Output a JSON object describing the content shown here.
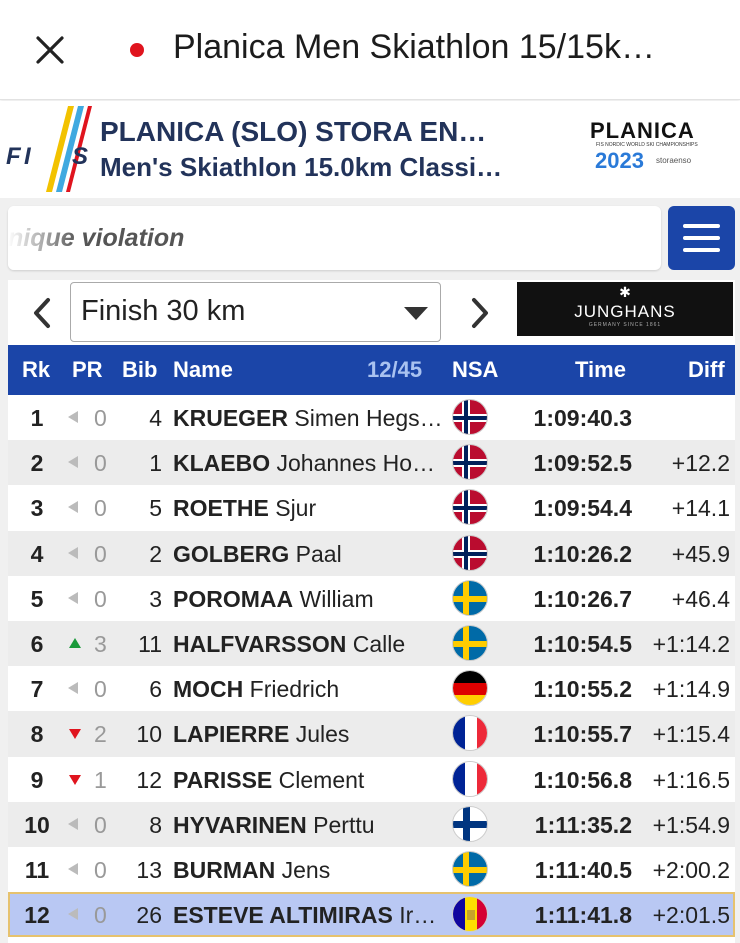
{
  "window": {
    "tab_title": "Planica Men Skiathlon 15/15k…"
  },
  "event": {
    "title_line1": "PLANICA (SLO) STORA EN…",
    "title_line2": "Men's Skiathlon 15.0km Classi…",
    "fis_logo_text": "FIS",
    "sponsor_logo": {
      "word": "PLANICA",
      "sub": "FIS NORDIC WORLD SKI CHAMPIONSHIPS",
      "year": "2023",
      "partner": "storaenso"
    }
  },
  "search": {
    "value": "nique violation"
  },
  "checkpoint": {
    "selected": "Finish 30 km",
    "ad": {
      "brand": "JUNGHANS",
      "sub": "GERMANY SINCE 1861"
    }
  },
  "table": {
    "headers": {
      "rk": "Rk",
      "pr": "PR",
      "bib": "Bib",
      "name": "Name",
      "count": "12/45",
      "nsa": "NSA",
      "time": "Time",
      "diff": "Diff"
    },
    "rows": [
      {
        "rk": "1",
        "pr_dir": "same",
        "pr": "0",
        "bib": "4",
        "last": "KRUEGER",
        "first": "Simen Hegs…",
        "nsa": "NOR",
        "time": "1:09:40.3",
        "diff": ""
      },
      {
        "rk": "2",
        "pr_dir": "same",
        "pr": "0",
        "bib": "1",
        "last": "KLAEBO",
        "first": "Johannes Ho…",
        "nsa": "NOR",
        "time": "1:09:52.5",
        "diff": "+12.2"
      },
      {
        "rk": "3",
        "pr_dir": "same",
        "pr": "0",
        "bib": "5",
        "last": "ROETHE",
        "first": "Sjur",
        "nsa": "NOR",
        "time": "1:09:54.4",
        "diff": "+14.1"
      },
      {
        "rk": "4",
        "pr_dir": "same",
        "pr": "0",
        "bib": "2",
        "last": "GOLBERG",
        "first": "Paal",
        "nsa": "NOR",
        "time": "1:10:26.2",
        "diff": "+45.9"
      },
      {
        "rk": "5",
        "pr_dir": "same",
        "pr": "0",
        "bib": "3",
        "last": "POROMAA",
        "first": "William",
        "nsa": "SWE",
        "time": "1:10:26.7",
        "diff": "+46.4"
      },
      {
        "rk": "6",
        "pr_dir": "up",
        "pr": "3",
        "bib": "11",
        "last": "HALFVARSSON",
        "first": "Calle",
        "nsa": "SWE",
        "time": "1:10:54.5",
        "diff": "+1:14.2"
      },
      {
        "rk": "7",
        "pr_dir": "same",
        "pr": "0",
        "bib": "6",
        "last": "MOCH",
        "first": "Friedrich",
        "nsa": "GER",
        "time": "1:10:55.2",
        "diff": "+1:14.9"
      },
      {
        "rk": "8",
        "pr_dir": "down",
        "pr": "2",
        "bib": "10",
        "last": "LAPIERRE",
        "first": "Jules",
        "nsa": "FRA",
        "time": "1:10:55.7",
        "diff": "+1:15.4"
      },
      {
        "rk": "9",
        "pr_dir": "down",
        "pr": "1",
        "bib": "12",
        "last": "PARISSE",
        "first": "Clement",
        "nsa": "FRA",
        "time": "1:10:56.8",
        "diff": "+1:16.5"
      },
      {
        "rk": "10",
        "pr_dir": "same",
        "pr": "0",
        "bib": "8",
        "last": "HYVARINEN",
        "first": "Perttu",
        "nsa": "FIN",
        "time": "1:11:35.2",
        "diff": "+1:54.9"
      },
      {
        "rk": "11",
        "pr_dir": "same",
        "pr": "0",
        "bib": "13",
        "last": "BURMAN",
        "first": "Jens",
        "nsa": "SWE",
        "time": "1:11:40.5",
        "diff": "+2:00.2"
      },
      {
        "rk": "12",
        "pr_dir": "same",
        "pr": "0",
        "bib": "26",
        "last": "ESTEVE ALTIMIRAS",
        "first": "Ir…",
        "nsa": "AND",
        "time": "1:11:41.8",
        "diff": "+2:01.5",
        "highlight": true
      }
    ]
  },
  "colors": {
    "header_blue": "#1b45a8",
    "highlight_row": "#b9c8f3",
    "up": "#1a9a3a",
    "down": "#e0141e"
  }
}
